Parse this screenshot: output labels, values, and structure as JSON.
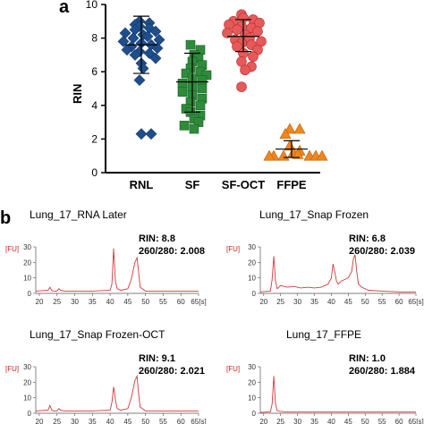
{
  "panel_a": {
    "letter": "a",
    "chart_data": {
      "type": "scatter",
      "ylabel": "RIN",
      "ylim": [
        0,
        10
      ],
      "yticks": [
        0,
        2,
        4,
        6,
        8,
        10
      ],
      "categories": [
        "RNL",
        "SF",
        "SF-OCT",
        "FFPE"
      ],
      "series": [
        {
          "category": "RNL",
          "marker": "diamond",
          "color": "#1f4e8c",
          "mean": 7.6,
          "sd_low": 5.9,
          "sd_high": 9.3,
          "values": [
            9.0,
            8.9,
            8.8,
            8.7,
            8.6,
            8.5,
            8.4,
            8.3,
            8.2,
            8.1,
            8.0,
            7.9,
            7.8,
            7.7,
            7.6,
            7.5,
            7.4,
            7.3,
            7.2,
            7.1,
            7.0,
            6.8,
            6.5,
            6.2,
            5.5,
            2.3,
            2.3
          ]
        },
        {
          "category": "SF",
          "marker": "square",
          "color": "#2e8b3a",
          "mean": 5.4,
          "sd_low": 3.6,
          "sd_high": 7.1,
          "values": [
            7.6,
            7.3,
            7.0,
            6.8,
            6.6,
            6.4,
            6.2,
            6.0,
            5.9,
            5.8,
            5.6,
            5.5,
            5.3,
            5.1,
            5.0,
            4.8,
            4.6,
            4.4,
            4.2,
            4.0,
            3.8,
            3.6,
            3.4,
            3.2,
            3.0,
            2.8,
            2.6
          ]
        },
        {
          "category": "SF-OCT",
          "marker": "circle",
          "color": "#e8595a",
          "mean": 8.1,
          "sd_low": 7.2,
          "sd_high": 9.1,
          "values": [
            9.4,
            9.2,
            9.1,
            9.0,
            8.9,
            8.8,
            8.7,
            8.6,
            8.5,
            8.4,
            8.3,
            8.2,
            8.0,
            7.9,
            7.8,
            7.7,
            7.6,
            7.5,
            7.3,
            7.1,
            6.9,
            6.6,
            6.3,
            6.1,
            5.1
          ]
        },
        {
          "category": "FFPE",
          "marker": "triangle",
          "color": "#f0861e",
          "mean": 1.4,
          "sd_low": 0.9,
          "sd_high": 1.9,
          "values": [
            2.6,
            2.6,
            2.3,
            1.6,
            1.3,
            1.2,
            1.1,
            1.0,
            1.0,
            1.0,
            1.0,
            1.0,
            1.0
          ]
        }
      ]
    }
  },
  "panel_b": {
    "letter": "b",
    "fu_label": "[FU]",
    "traces": [
      {
        "title": "Lung_17_RNA Later",
        "rin": "RIN: 8.8",
        "ratio": "260/280: 2.008",
        "chart_data": {
          "type": "line",
          "xlim": [
            19,
            65
          ],
          "ylim": [
            0,
            30
          ],
          "xticks": [
            "20",
            "25",
            "30",
            "35",
            "40",
            "45",
            "50",
            "55",
            "60",
            "65"
          ],
          "x_unit": "[s]",
          "yticks": [
            "0",
            "10",
            "20",
            "30"
          ],
          "x": [
            19,
            22.5,
            23,
            23.5,
            24,
            25,
            25.5,
            26,
            27,
            30,
            35,
            40,
            40.5,
            41,
            41.5,
            42,
            43,
            45,
            46,
            47,
            47.6,
            48,
            48.5,
            50,
            55,
            60,
            65
          ],
          "values": [
            1.5,
            2,
            4,
            2,
            1.5,
            1.5,
            3,
            2,
            1.5,
            1.5,
            1.5,
            2,
            6,
            29,
            8,
            3,
            2,
            3,
            9,
            20,
            23,
            15,
            4,
            1.5,
            1.5,
            1.5,
            1.5
          ]
        }
      },
      {
        "title": "Lung_17_Snap Frozen",
        "rin": "RIN: 6.8",
        "ratio": "260/280: 2.039",
        "chart_data": {
          "type": "line",
          "xlim": [
            19,
            65
          ],
          "ylim": [
            0,
            30
          ],
          "xticks": [
            "20",
            "25",
            "30",
            "35",
            "40",
            "45",
            "50",
            "55",
            "60",
            "65"
          ],
          "x_unit": "[s]",
          "yticks": [
            "0",
            "10",
            "20",
            "30"
          ],
          "x": [
            19,
            22,
            22.5,
            23,
            23.5,
            24,
            25,
            27,
            29,
            31,
            33,
            35,
            37,
            38,
            39,
            40,
            40.5,
            41,
            41.5,
            42,
            43,
            44,
            45,
            46,
            46.5,
            47,
            47.5,
            48,
            49,
            51,
            55,
            60,
            65
          ],
          "values": [
            1,
            1.5,
            9,
            24,
            8,
            3,
            5,
            4,
            4.5,
            3.5,
            4,
            3.5,
            4,
            5,
            6,
            10,
            19,
            14,
            8,
            6,
            8,
            9,
            10,
            14,
            22,
            25,
            14,
            6,
            4,
            2,
            1.5,
            1,
            1
          ]
        }
      },
      {
        "title": "Lung_17_Snap Frozen-OCT",
        "rin": "RIN: 9.1",
        "ratio": "260/280: 2.021",
        "chart_data": {
          "type": "line",
          "xlim": [
            19,
            65
          ],
          "ylim": [
            0,
            30
          ],
          "xticks": [
            "20",
            "25",
            "30",
            "35",
            "40",
            "45",
            "50",
            "55",
            "60",
            "65"
          ],
          "x_unit": "[s]",
          "yticks": [
            "0",
            "10",
            "20",
            "30"
          ],
          "x": [
            19,
            22.5,
            23,
            23.5,
            24,
            25,
            25.5,
            26,
            27,
            30,
            35,
            40,
            40.5,
            41,
            41.5,
            42,
            43,
            45,
            46,
            47,
            47.6,
            48,
            48.5,
            50,
            55,
            60,
            65
          ],
          "values": [
            1.5,
            2,
            5,
            2,
            1.5,
            1.5,
            3,
            2,
            1.5,
            1.5,
            1.5,
            2,
            7,
            17,
            9,
            3,
            2,
            3,
            10,
            21,
            24,
            14,
            4,
            1.5,
            1.5,
            1.5,
            1.5
          ]
        }
      },
      {
        "title": "Lung_17_FFPE",
        "rin": "RIN: 1.0",
        "ratio": "260/280: 1.884",
        "chart_data": {
          "type": "line",
          "xlim": [
            19,
            65
          ],
          "ylim": [
            0,
            30
          ],
          "xticks": [
            "20",
            "25",
            "30",
            "35",
            "40",
            "45",
            "50",
            "55",
            "60",
            "65"
          ],
          "x_unit": "[s]",
          "yticks": [
            "0",
            "10",
            "20",
            "30"
          ],
          "x": [
            19,
            22,
            22.5,
            23,
            23.5,
            24,
            26,
            30,
            35,
            40,
            45,
            50,
            55,
            60,
            65
          ],
          "values": [
            0.5,
            1,
            6,
            24,
            6,
            1.5,
            1,
            1,
            1,
            1,
            1,
            1,
            1,
            1,
            1
          ]
        }
      }
    ]
  }
}
